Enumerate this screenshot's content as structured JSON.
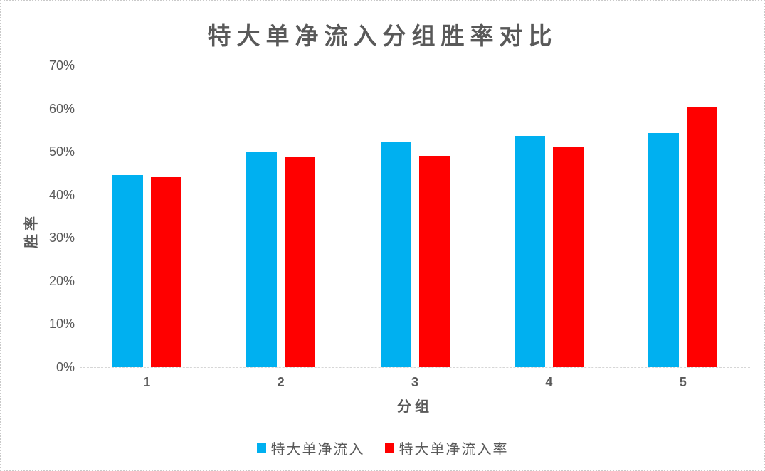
{
  "chart_data": {
    "type": "bar",
    "title": "特大单净流入分组胜率对比",
    "xlabel": "分组",
    "ylabel": "胜率",
    "categories": [
      "1",
      "2",
      "3",
      "4",
      "5"
    ],
    "series": [
      {
        "name": "特大单净流入",
        "color": "#00B0F0",
        "values": [
          44.6,
          50.0,
          52.2,
          53.6,
          54.4
        ]
      },
      {
        "name": "特大单净流入率",
        "color": "#FF0000",
        "values": [
          44.1,
          48.8,
          49.1,
          51.1,
          60.5
        ]
      }
    ],
    "ylim": [
      0,
      70
    ],
    "ytick_values": [
      0,
      10,
      20,
      30,
      40,
      50,
      60,
      70
    ],
    "yticks": [
      "0%",
      "10%",
      "20%",
      "30%",
      "40%",
      "50%",
      "60%",
      "70%"
    ],
    "grid": false,
    "legend_position": "bottom"
  },
  "colors": {
    "text": "#595959",
    "axis_line": "#d6d6d6",
    "background": "#ffffff",
    "frame_border": "#c9c9c9"
  }
}
